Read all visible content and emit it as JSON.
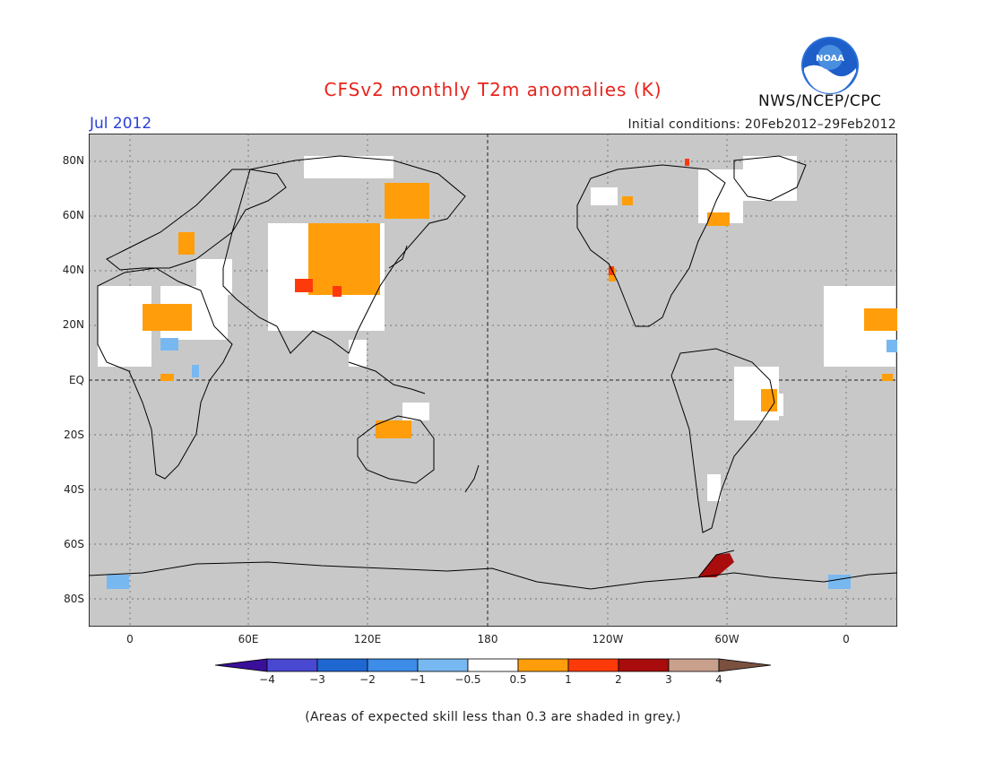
{
  "header": {
    "title": "CFSv2 monthly T2m anomalies (K)",
    "month": "Jul 2012",
    "initial_conditions": "Initial conditions: 20Feb2012–29Feb2012",
    "agency": "NWS/NCEP/CPC",
    "logo_text": "NOAA"
  },
  "map": {
    "lat_labels": [
      "80N",
      "60N",
      "40N",
      "20N",
      "EQ",
      "20S",
      "40S",
      "60S",
      "80S"
    ],
    "lon_labels": [
      "0",
      "60E",
      "120E",
      "180",
      "120W",
      "60W",
      "0"
    ],
    "background_color": "#c8c8c8"
  },
  "colorbar": {
    "labels": [
      "−4",
      "−3",
      "−2",
      "−1",
      "−0.5",
      "0.5",
      "1",
      "2",
      "3",
      "4"
    ],
    "colors": [
      "#3a109a",
      "#4848d0",
      "#1f68d2",
      "#3d8ce8",
      "#78b8f0",
      "#ffffff",
      "#ff9e0a",
      "#ff3a0a",
      "#a80c0c",
      "#c8a08c",
      "#7a5040"
    ]
  },
  "footnote": "(Areas of expected skill less than 0.3 are shaded in grey.)"
}
